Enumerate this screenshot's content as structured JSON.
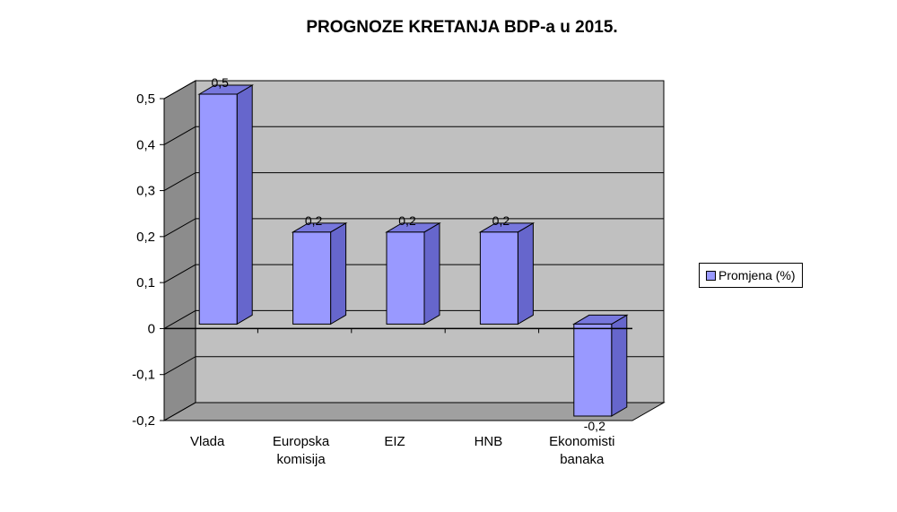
{
  "chart_data": {
    "type": "bar",
    "title": "PROGNOZE KRETANJA BDP-a u 2015.",
    "categories": [
      [
        "Vlada"
      ],
      [
        "Europska",
        "komisija"
      ],
      [
        "EIZ"
      ],
      [
        "HNB"
      ],
      [
        "Ekonomisti",
        "banaka"
      ]
    ],
    "series": [
      {
        "name": "Promjena (%)",
        "values": [
          0.5,
          0.2,
          0.2,
          0.2,
          -0.2
        ]
      }
    ],
    "data_labels": [
      "0,5",
      "0,2",
      "0,2",
      "0,2",
      "-0,2"
    ],
    "yticks": [
      "0,5",
      "0,4",
      "0,3",
      "0,2",
      "0,1",
      "0",
      "-0,1",
      "-0,2"
    ],
    "ytick_values": [
      0.5,
      0.4,
      0.3,
      0.2,
      0.1,
      0,
      -0.1,
      -0.2
    ],
    "ylim": [
      -0.2,
      0.5
    ],
    "grid": true,
    "legend_position": "right",
    "colors": {
      "bar_front": "#9999ff",
      "bar_side": "#6666cc",
      "bar_top": "#7777dd",
      "wall": "#c0c0c0",
      "side_wall": "#8c8c8c",
      "floor": "#a0a0a0"
    }
  }
}
